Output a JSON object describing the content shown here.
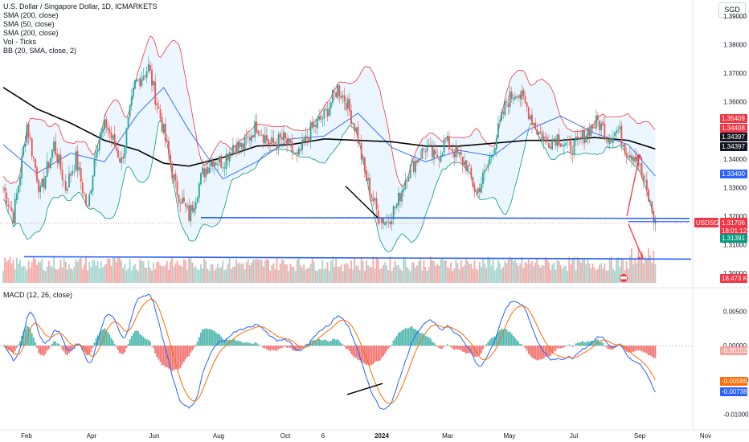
{
  "legend": {
    "title": "U.S. Dollar / Singapore Dollar, 1D, ICMARKETS",
    "lines": [
      "SMA (200, close)",
      "SMA (50, close)",
      "SMA (200, close)",
      "Vol - Ticks",
      "BB (20, SMA, close, 2)"
    ]
  },
  "currency": "SGD",
  "macd_label": "MACD (12, 26, close)",
  "colors": {
    "up": "#26a69a",
    "down": "#ef5350",
    "sma200": "#000000",
    "sma50": "#2962ff",
    "bb_upper": "#f23645",
    "bb_lower": "#089981",
    "bb_fill": "#e3f2fd",
    "support": "#2962ff",
    "arrow": "#f23645",
    "macd": "#2962ff",
    "signal": "#ff6d00"
  },
  "chart_data": [
    {
      "type": "candlestick",
      "symbol": "USDSGD",
      "ylim": [
        1.295,
        1.395
      ],
      "yticks": [
        "1.39000",
        "1.38000",
        "1.37000",
        "1.36000",
        "1.35000",
        "1.34000",
        "1.33000",
        "1.32000",
        "1.31000",
        "1.30000"
      ],
      "xticks": [
        "Feb",
        "Apr",
        "Jun",
        "Aug",
        "Oct",
        "6",
        "2024",
        "Mar",
        "May",
        "Jul",
        "Sep",
        "Nov"
      ],
      "price_tags": [
        {
          "value": "1.35409",
          "color": "#f23645"
        },
        {
          "value": "1.34408",
          "color": "#f23645"
        },
        {
          "value": "1.34397",
          "color": "#131722"
        },
        {
          "value": "1.34397",
          "color": "#131722"
        },
        {
          "value": "1.33400",
          "color": "#2962ff"
        },
        {
          "value": "1.31706",
          "color": "#f23645",
          "symbol": "USDSGD",
          "countdown": "18:01:12"
        },
        {
          "value": "1.31391",
          "color": "#089981"
        },
        {
          "value": "18.473 K",
          "color": "#f23645"
        }
      ],
      "path": [
        [
          0,
          1.33
        ],
        [
          6,
          1.32
        ],
        [
          10,
          1.335
        ],
        [
          14,
          1.352
        ],
        [
          22,
          1.328
        ],
        [
          30,
          1.345
        ],
        [
          37,
          1.33
        ],
        [
          43,
          1.34
        ],
        [
          50,
          1.322
        ],
        [
          55,
          1.345
        ],
        [
          61,
          1.352
        ],
        [
          70,
          1.339
        ],
        [
          78,
          1.366
        ],
        [
          86,
          1.372
        ],
        [
          94,
          1.352
        ],
        [
          102,
          1.33
        ],
        [
          110,
          1.32
        ],
        [
          118,
          1.335
        ],
        [
          124,
          1.34
        ],
        [
          130,
          1.339
        ],
        [
          136,
          1.345
        ],
        [
          142,
          1.344
        ],
        [
          150,
          1.352
        ],
        [
          158,
          1.345
        ],
        [
          166,
          1.347
        ],
        [
          174,
          1.34
        ],
        [
          182,
          1.35
        ],
        [
          190,
          1.355
        ],
        [
          198,
          1.365
        ],
        [
          203,
          1.36
        ],
        [
          209,
          1.35
        ],
        [
          214,
          1.335
        ],
        [
          222,
          1.32
        ],
        [
          227,
          1.318
        ],
        [
          233,
          1.324
        ],
        [
          239,
          1.335
        ],
        [
          245,
          1.34
        ],
        [
          250,
          1.344
        ],
        [
          256,
          1.34
        ],
        [
          262,
          1.346
        ],
        [
          268,
          1.342
        ],
        [
          274,
          1.338
        ],
        [
          280,
          1.328
        ],
        [
          286,
          1.336
        ],
        [
          292,
          1.348
        ],
        [
          298,
          1.36
        ],
        [
          304,
          1.364
        ],
        [
          310,
          1.358
        ],
        [
          316,
          1.35
        ],
        [
          322,
          1.346
        ],
        [
          328,
          1.348
        ],
        [
          334,
          1.344
        ],
        [
          340,
          1.345
        ],
        [
          346,
          1.35
        ],
        [
          352,
          1.353
        ],
        [
          358,
          1.348
        ],
        [
          364,
          1.35
        ],
        [
          369,
          1.343
        ],
        [
          375,
          1.341
        ],
        [
          378,
          1.334
        ],
        [
          383,
          1.324
        ],
        [
          386,
          1.317
        ]
      ],
      "sma200": [
        [
          0,
          1.365
        ],
        [
          20,
          1.3575
        ],
        [
          40,
          1.3525
        ],
        [
          60,
          1.3465
        ],
        [
          80,
          1.343
        ],
        [
          95,
          1.3385
        ],
        [
          110,
          1.3375
        ],
        [
          130,
          1.3405
        ],
        [
          150,
          1.3445
        ],
        [
          170,
          1.345
        ],
        [
          190,
          1.347
        ],
        [
          210,
          1.3465
        ],
        [
          230,
          1.346
        ],
        [
          250,
          1.3445
        ],
        [
          270,
          1.3445
        ],
        [
          290,
          1.3455
        ],
        [
          310,
          1.3465
        ],
        [
          330,
          1.3465
        ],
        [
          350,
          1.3475
        ],
        [
          370,
          1.3465
        ],
        [
          386,
          1.3435
        ]
      ],
      "sma50": [
        [
          0,
          1.345
        ],
        [
          20,
          1.335
        ],
        [
          40,
          1.342
        ],
        [
          60,
          1.339
        ],
        [
          80,
          1.356
        ],
        [
          95,
          1.365
        ],
        [
          110,
          1.35
        ],
        [
          130,
          1.333
        ],
        [
          150,
          1.339
        ],
        [
          170,
          1.347
        ],
        [
          190,
          1.348
        ],
        [
          210,
          1.356
        ],
        [
          230,
          1.344
        ],
        [
          250,
          1.339
        ],
        [
          270,
          1.343
        ],
        [
          290,
          1.341
        ],
        [
          310,
          1.35
        ],
        [
          330,
          1.355
        ],
        [
          350,
          1.349
        ],
        [
          370,
          1.345
        ],
        [
          386,
          1.334
        ]
      ],
      "support_lines": [
        1.3195,
        1.305
      ],
      "volume_max_k": 60,
      "current_volume_k": 18.473
    },
    {
      "type": "macd",
      "title": "MACD (12, 26, close)",
      "ylim": [
        -0.0105,
        0.0068
      ],
      "yticks": [
        "0.00500",
        "0.00000",
        "-0.00500",
        "-0.01000"
      ],
      "tags": [
        {
          "value": "-0.00152",
          "color": "#f7a4a0"
        },
        {
          "value": "-0.00586",
          "color": "#ff6d00"
        },
        {
          "value": "-0.00738",
          "color": "#2962ff"
        }
      ]
    }
  ]
}
